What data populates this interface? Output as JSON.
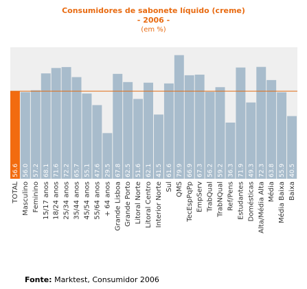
{
  "title": {
    "line1": "Consumidores de sabonete líquido (creme)",
    "line2": "- 2006 -",
    "line3": "(em %)"
  },
  "source": {
    "label": "Fonte:",
    "text": "Marktest, Consumidor 2006"
  },
  "colors": {
    "plot_bg": "#efefef",
    "bar": "#a8bccc",
    "highlight_bar": "#f26b0f",
    "reference_line": "#e06a10",
    "title": "#e86a10"
  },
  "chart_data": {
    "type": "bar",
    "categories": [
      "TOTAL",
      "Masculino",
      "Feminino",
      "15/17 anos",
      "18/24 anos",
      "25/34 anos",
      "35/44 anos",
      "45/54 anos",
      "55/64 anos",
      "+ 64 anos",
      "Grande Lisboa",
      "Grande Porto",
      "Litoral Norte",
      "Litoral Centro",
      "Interior Norte",
      "Sul",
      "QMS",
      "TecEspPqPp",
      "EmpServ",
      "TrabQual",
      "TrabNQual",
      "Ref/Pens",
      "Estudantes",
      "Domésticas",
      "Alta/Média Alta",
      "Média",
      "Média Baixa",
      "Baixa"
    ],
    "values": [
      56.6,
      56.0,
      57.2,
      68.1,
      71.6,
      72.2,
      65.7,
      55.1,
      47.6,
      29.5,
      67.8,
      62.5,
      51.6,
      62.1,
      41.5,
      61.6,
      79.9,
      66.9,
      67.3,
      56.2,
      59.2,
      36.3,
      71.9,
      49.3,
      72.3,
      63.8,
      55.9,
      40.5
    ],
    "value_labels": [
      "56.6",
      "56.0",
      "57.2",
      "68.1",
      "71.6",
      "72.2",
      "65.7",
      "55.1",
      "47.6",
      "29.5",
      "67.8",
      "62.5",
      "51.6",
      "62.1",
      "41.5",
      "61.6",
      "79.9",
      "66.9",
      "67.3",
      "56.2",
      "59.2",
      "36.3",
      "71.9",
      "49.3",
      "72.3",
      "63.8",
      "55.9",
      "40.5"
    ],
    "highlight_index": 0,
    "reference_value": 56.6,
    "ylim": [
      0,
      85
    ],
    "grid": false,
    "xlabel": "",
    "ylabel": ""
  }
}
